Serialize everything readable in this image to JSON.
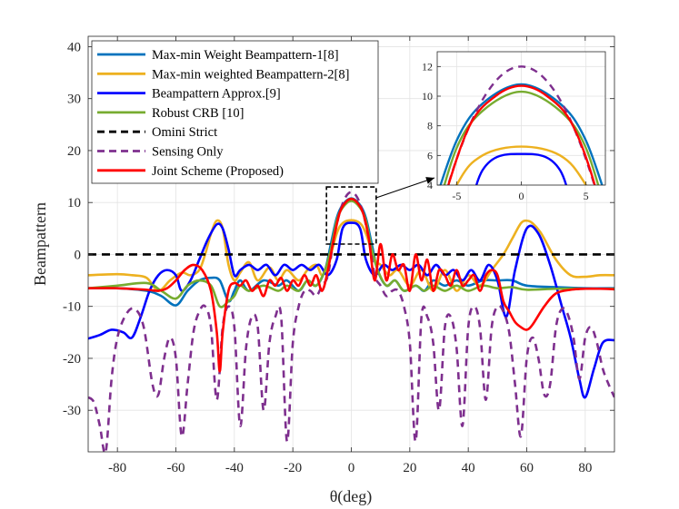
{
  "chart_data": {
    "type": "line",
    "title": "",
    "xlabel": "θ(deg)",
    "ylabel": "Beampattern",
    "xlim": [
      -90,
      90
    ],
    "ylim": [
      -38,
      42
    ],
    "xticks": [
      -80,
      -60,
      -40,
      -20,
      0,
      20,
      40,
      60,
      80
    ],
    "yticks": [
      -30,
      -20,
      -10,
      0,
      10,
      20,
      30,
      40
    ],
    "xtick_labels": [
      "-80",
      "-60",
      "-40",
      "-20",
      "0",
      "20",
      "40",
      "60",
      "80"
    ],
    "ytick_labels": [
      "-30",
      "-20",
      "-10",
      "0",
      "10",
      "20",
      "30",
      "40"
    ],
    "grid": true,
    "legend_position": "top-left",
    "series": [
      {
        "name": "Max-min Weight Beampattern-1[8]",
        "color": "#0072BD",
        "dash": "solid",
        "x": [
          -90,
          -80,
          -70,
          -65,
          -60,
          -56,
          -52,
          -48,
          -45,
          -42,
          -40,
          -38,
          -35,
          -30,
          -25,
          -22,
          -18,
          -15,
          -12,
          -9,
          -7,
          -5,
          -3,
          0,
          3,
          5,
          7,
          9,
          12,
          15,
          18,
          22,
          25,
          28,
          32,
          36,
          40,
          45,
          50,
          55,
          60,
          70,
          80,
          90
        ],
        "y": [
          -6.5,
          -6.5,
          -7,
          -8,
          -9.8,
          -7,
          -5,
          -4.5,
          -5,
          -9,
          -7,
          -5,
          -7,
          -5,
          -6,
          -5,
          -7,
          -5,
          -6,
          -3,
          2,
          7,
          9.5,
          10.8,
          9.5,
          7,
          2,
          -3,
          -6,
          -5,
          -7,
          -6,
          -7,
          -5,
          -6,
          -5,
          -6,
          -5,
          -5,
          -5,
          -6,
          -6.3,
          -6.5,
          -6.5
        ]
      },
      {
        "name": "Max-min weighted Beampattern-2[8]",
        "color": "#EDB120",
        "dash": "solid",
        "x": [
          -90,
          -80,
          -75,
          -70,
          -66,
          -62,
          -58,
          -55,
          -52,
          -50,
          -48,
          -46,
          -44,
          -42,
          -40,
          -38,
          -35,
          -32,
          -28,
          -25,
          -22,
          -18,
          -15,
          -12,
          -10,
          -8,
          -5,
          -3,
          0,
          3,
          5,
          8,
          10,
          13,
          16,
          20,
          24,
          28,
          32,
          36,
          40,
          44,
          48,
          52,
          55,
          58,
          60,
          62,
          65,
          70,
          75,
          80,
          85,
          90
        ],
        "y": [
          -4,
          -3.8,
          -4,
          -4.5,
          -7,
          -5,
          -3.5,
          -4,
          -3,
          0,
          4,
          6.5,
          5,
          -2,
          -5,
          -3.5,
          -1.5,
          -5,
          -2.5,
          -5,
          -3,
          -5,
          -3,
          -2,
          -4,
          -2,
          4,
          6,
          6.6,
          6,
          4,
          -1,
          -2,
          -4,
          -3,
          -6,
          -3,
          -7,
          -3,
          -7,
          -4,
          -6,
          -3,
          0,
          3,
          6,
          6.5,
          6,
          4,
          -1,
          -4,
          -4.3,
          -4,
          -4
        ]
      },
      {
        "name": "Beampattern Approx.[9]",
        "color": "#0000FF",
        "dash": "solid",
        "x": [
          -90,
          -86,
          -82,
          -78,
          -75,
          -72,
          -69,
          -66,
          -63,
          -60,
          -58,
          -55,
          -52,
          -49,
          -46,
          -44,
          -42,
          -40,
          -38,
          -35,
          -32,
          -29,
          -26,
          -23,
          -20,
          -17,
          -14,
          -11,
          -8,
          -5,
          -3,
          0,
          3,
          5,
          8,
          11,
          14,
          17,
          20,
          23,
          26,
          29,
          32,
          35,
          38,
          41,
          44,
          47,
          50,
          53,
          56,
          60,
          64,
          68,
          72,
          75,
          78,
          80,
          83,
          86,
          90
        ],
        "y": [
          -16.2,
          -15.5,
          -14.5,
          -15,
          -16,
          -12,
          -7,
          -4,
          -3,
          -4,
          -7,
          -5,
          -1,
          3,
          5.8,
          5,
          1,
          -4,
          -3,
          -2,
          -3,
          -2,
          -4,
          -2,
          -3,
          -2,
          -3,
          -2,
          -4,
          -1,
          5,
          6.1,
          5,
          -1,
          -4,
          -2,
          -3,
          -2,
          -3,
          -2,
          -4,
          -2,
          -4,
          -3,
          -5,
          -3,
          -5,
          -2,
          -5,
          -12,
          -3,
          5,
          4,
          -2,
          -10,
          -16,
          -24,
          -27.5,
          -22,
          -17,
          -16.5
        ]
      },
      {
        "name": "Robust CRB [10]",
        "color": "#77AC30",
        "dash": "solid",
        "x": [
          -90,
          -80,
          -70,
          -65,
          -60,
          -56,
          -52,
          -48,
          -45,
          -42,
          -40,
          -38,
          -35,
          -30,
          -25,
          -22,
          -18,
          -15,
          -12,
          -9,
          -7,
          -5,
          -3,
          0,
          3,
          5,
          7,
          9,
          12,
          15,
          18,
          22,
          25,
          28,
          32,
          36,
          40,
          45,
          50,
          55,
          60,
          70,
          80,
          90
        ],
        "y": [
          -6.5,
          -6,
          -5.5,
          -7,
          -8.5,
          -6,
          -5,
          -6,
          -10,
          -9,
          -8,
          -6,
          -7,
          -6,
          -7,
          -6,
          -7,
          -5,
          -6,
          -3,
          1,
          6.5,
          9,
          10.3,
          9,
          6.5,
          1,
          -3,
          -6,
          -5,
          -7,
          -6,
          -7,
          -6,
          -7,
          -6,
          -7,
          -6,
          -6.5,
          -6.3,
          -6.8,
          -6.6,
          -6.6,
          -6.6
        ]
      },
      {
        "name": "Omini Strict",
        "color": "#000000",
        "dash": "dashed",
        "x": [
          -90,
          90
        ],
        "y": [
          0,
          0
        ]
      },
      {
        "name": "Sensing Only",
        "color": "#7E2F8E",
        "dash": "dashed",
        "x": [
          -90,
          -88,
          -86,
          -84,
          -82,
          -80,
          -77,
          -74,
          -71,
          -68,
          -66,
          -64,
          -62,
          -60,
          -58,
          -56,
          -54,
          -52,
          -50,
          -48,
          -46,
          -44,
          -42,
          -40,
          -38,
          -36,
          -34,
          -32,
          -30,
          -28,
          -26,
          -24,
          -22,
          -20,
          -18,
          -16,
          -14,
          -12,
          -10,
          -8,
          -6,
          -4,
          -2,
          0,
          2,
          4,
          6,
          8,
          10,
          12,
          14,
          16,
          18,
          20,
          22,
          24,
          26,
          28,
          30,
          32,
          34,
          36,
          38,
          40,
          42,
          44,
          46,
          48,
          50,
          52,
          54,
          56,
          58,
          60,
          62,
          64,
          66,
          68,
          70,
          72,
          74,
          76,
          78,
          80,
          82,
          84,
          86,
          88,
          90
        ],
        "y": [
          -27.5,
          -28.5,
          -33,
          -38,
          -24,
          -16,
          -11.5,
          -10.5,
          -14,
          -25,
          -27,
          -20,
          -16,
          -20,
          -35,
          -25,
          -15,
          -11,
          -10,
          -14,
          -28,
          -14,
          -10,
          -14,
          -33,
          -18,
          -12,
          -14,
          -30,
          -17,
          -12,
          -12,
          -36,
          -17,
          -10,
          -7,
          -7,
          -8,
          -6,
          -4,
          3,
          8,
          11,
          12,
          11,
          8,
          3,
          -4,
          -6,
          -8,
          -7,
          -7,
          -10,
          -17,
          -36,
          -12,
          -12,
          -17,
          -30,
          -14,
          -12,
          -18,
          -33,
          -14,
          -10,
          -14,
          -28,
          -14,
          -10,
          -11,
          -15,
          -25,
          -35,
          -20,
          -16,
          -20,
          -27,
          -25,
          -14,
          -10.5,
          -11.5,
          -16,
          -24,
          -16,
          -14,
          -17,
          -22,
          -25,
          -27.5
        ]
      },
      {
        "name": "Joint Scheme (Proposed)",
        "color": "#FF0000",
        "dash": "solid",
        "x": [
          -90,
          -80,
          -70,
          -66,
          -63,
          -60,
          -57,
          -54,
          -51,
          -48,
          -46,
          -45,
          -44,
          -42,
          -40,
          -38,
          -36,
          -34,
          -32,
          -30,
          -28,
          -26,
          -24,
          -22,
          -20,
          -18,
          -16,
          -14,
          -12,
          -10,
          -8,
          -6,
          -4,
          -2,
          0,
          2,
          4,
          6,
          8,
          10,
          12,
          14,
          16,
          18,
          20,
          22,
          24,
          26,
          28,
          30,
          32,
          34,
          36,
          38,
          40,
          42,
          44,
          46,
          48,
          50,
          52,
          54,
          56,
          58,
          60,
          62,
          66,
          70,
          75,
          80,
          85,
          90
        ],
        "y": [
          -6.5,
          -6.5,
          -6.8,
          -7,
          -6.5,
          -5,
          -3,
          -2,
          -3,
          -7,
          -15,
          -22.5,
          -15,
          -7,
          -5.5,
          -6,
          -5,
          -7,
          -6,
          -8,
          -5,
          -6,
          -4.5,
          -7,
          -5,
          -6,
          -4,
          -6,
          -4,
          -7,
          -3,
          3,
          8,
          10,
          10.7,
          10,
          8,
          3,
          -5,
          2,
          -5,
          0,
          -3,
          -2,
          -7,
          0,
          -5,
          -1,
          -7,
          -3,
          -4,
          -6,
          -3,
          -6,
          -5,
          -4,
          -7,
          -4,
          -3,
          -4,
          -9,
          -11,
          -13,
          -14,
          -14.5,
          -13.5,
          -10,
          -7.5,
          -6.8,
          -6.6,
          -6.6,
          -6.7
        ]
      }
    ],
    "inset": {
      "xlim": [
        -6.5,
        6.5
      ],
      "ylim": [
        4,
        13
      ],
      "xticks": [
        -5,
        0,
        5
      ],
      "yticks": [
        4,
        6,
        8,
        10,
        12
      ],
      "xtick_labels": [
        "-5",
        "0",
        "5"
      ],
      "ytick_labels": [
        "4",
        "6",
        "8",
        "10",
        "12"
      ],
      "zoom_region": {
        "x": [
          -8.5,
          8.5
        ],
        "y": [
          2,
          13
        ]
      }
    }
  }
}
